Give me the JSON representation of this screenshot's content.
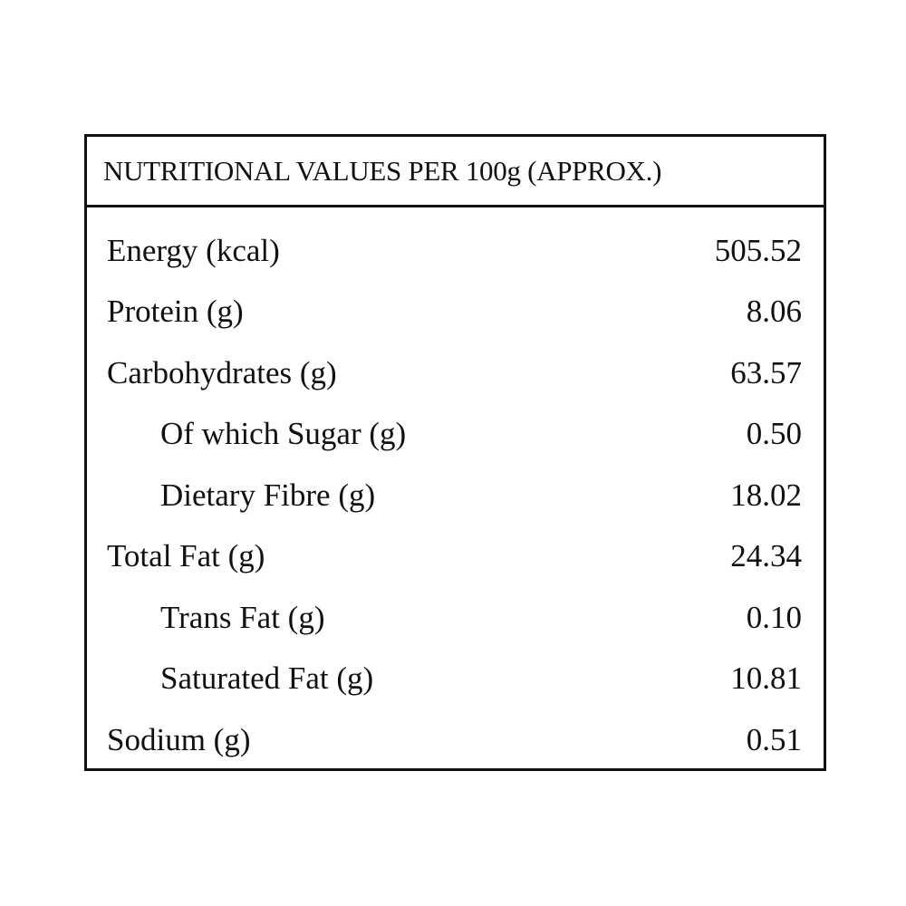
{
  "table": {
    "title": "NUTRITIONAL VALUES PER 100g (APPROX.)",
    "rows": [
      {
        "label": "Energy (kcal)",
        "value": "505.52"
      },
      {
        "label": "Protein (g)",
        "value": "8.06"
      },
      {
        "label": "Carbohydrates (g)",
        "value": "63.57",
        "items": [
          {
            "label": "Of which Sugar (g)",
            "value": "0.50"
          },
          {
            "label": "Dietary Fibre (g)",
            "value": "18.02"
          }
        ]
      },
      {
        "label": "Total Fat (g)",
        "value": "24.34",
        "items": [
          {
            "label": "Trans Fat (g)",
            "value": "0.10"
          },
          {
            "label": "Saturated Fat (g)",
            "value": "10.81"
          }
        ]
      },
      {
        "label": "Sodium (g)",
        "value": "0.51"
      }
    ]
  }
}
